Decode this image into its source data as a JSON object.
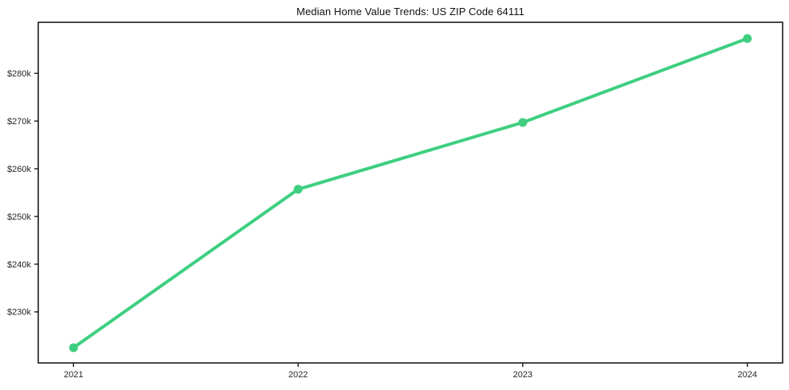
{
  "chart_data": {
    "type": "line",
    "title": "Median Home Value Trends: US ZIP Code 64111",
    "x": [
      2021,
      2022,
      2023,
      2024
    ],
    "x_tick_labels": [
      "2021",
      "2022",
      "2023",
      "2024"
    ],
    "series": [
      {
        "name": "Median Home Value",
        "values": [
          222500,
          255700,
          269700,
          287300
        ],
        "color": "#3ecf81"
      }
    ],
    "xlabel": "",
    "ylabel": "",
    "xlim": [
      2020.843,
      2024.157
    ],
    "ylim": [
      219300,
      290700
    ],
    "y_ticks": [
      230000,
      240000,
      250000,
      260000,
      270000,
      280000
    ],
    "y_tick_labels": [
      "$230k",
      "$240k",
      "$250k",
      "$260k",
      "$270k",
      "$280k"
    ],
    "grid": false,
    "legend": "none",
    "line_width": 4,
    "marker_radius": 5.5,
    "axis_color": "#1a1a1a",
    "tick_label_color": "#262626",
    "title_color": "#111111",
    "background_color": "#ffffff"
  }
}
